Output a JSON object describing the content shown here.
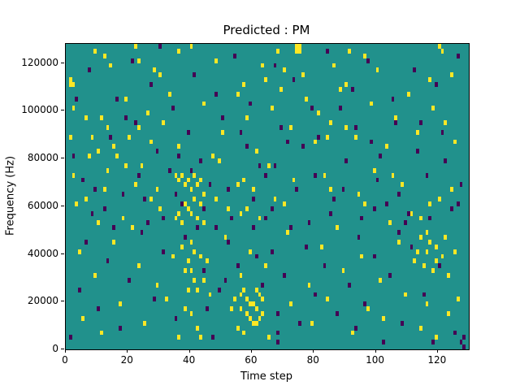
{
  "chart_data": {
    "type": "heatmap",
    "title": "Predicted : PM",
    "xlabel": "Time step",
    "ylabel": "Frequency (Hz)",
    "x_range": [
      0,
      130
    ],
    "y_range": [
      0,
      128000
    ],
    "x_ticks": [
      0,
      20,
      40,
      60,
      80,
      100,
      120
    ],
    "y_ticks": [
      0,
      20000,
      40000,
      60000,
      80000,
      100000,
      120000
    ],
    "grid": {
      "cols": 130,
      "rows": 64,
      "freq_per_row": 2000
    },
    "legend": "none",
    "colors": {
      "background": "#21918c",
      "high": "#fde725",
      "low": "#440154",
      "figure_bg": "#ffffff",
      "axis": "#000000"
    },
    "cells_high": [
      [
        1,
        55
      ],
      [
        2,
        55
      ],
      [
        1,
        56
      ],
      [
        9,
        62
      ],
      [
        14,
        59
      ],
      [
        22,
        63
      ],
      [
        23,
        60
      ],
      [
        30,
        57
      ],
      [
        36,
        62
      ],
      [
        40,
        63
      ],
      [
        48,
        60
      ],
      [
        57,
        55
      ],
      [
        63,
        59
      ],
      [
        64,
        56
      ],
      [
        68,
        62
      ],
      [
        70,
        58
      ],
      [
        74,
        63
      ],
      [
        75,
        62
      ],
      [
        76,
        57
      ],
      [
        86,
        59
      ],
      [
        90,
        55
      ],
      [
        91,
        62
      ],
      [
        96,
        61
      ],
      [
        100,
        58
      ],
      [
        117,
        56
      ],
      [
        120,
        63
      ],
      [
        121,
        62
      ],
      [
        124,
        57
      ],
      [
        12,
        61
      ],
      [
        28,
        58
      ],
      [
        2,
        50
      ],
      [
        6,
        48
      ],
      [
        10,
        41
      ],
      [
        13,
        46
      ],
      [
        19,
        52
      ],
      [
        20,
        44
      ],
      [
        26,
        49
      ],
      [
        31,
        47
      ],
      [
        36,
        42
      ],
      [
        44,
        51
      ],
      [
        50,
        45
      ],
      [
        55,
        53
      ],
      [
        58,
        48
      ],
      [
        61,
        41
      ],
      [
        66,
        50
      ],
      [
        72,
        46
      ],
      [
        77,
        52
      ],
      [
        80,
        43
      ],
      [
        81,
        49
      ],
      [
        85,
        47
      ],
      [
        88,
        54
      ],
      [
        93,
        44
      ],
      [
        98,
        51
      ],
      [
        103,
        42
      ],
      [
        106,
        48
      ],
      [
        110,
        53
      ],
      [
        113,
        45
      ],
      [
        118,
        50
      ],
      [
        122,
        47
      ],
      [
        125,
        43
      ],
      [
        33,
        53
      ],
      [
        47,
        40
      ],
      [
        69,
        54
      ],
      [
        8,
        44
      ],
      [
        16,
        40
      ],
      [
        35,
        36
      ],
      [
        36,
        35
      ],
      [
        37,
        36
      ],
      [
        38,
        34
      ],
      [
        38,
        30
      ],
      [
        39,
        35
      ],
      [
        39,
        29
      ],
      [
        40,
        33
      ],
      [
        40,
        28
      ],
      [
        41,
        31
      ],
      [
        41,
        36
      ],
      [
        42,
        27
      ],
      [
        42,
        34
      ],
      [
        43,
        30
      ],
      [
        44,
        26
      ],
      [
        36,
        28
      ],
      [
        37,
        26
      ],
      [
        43,
        35
      ],
      [
        44,
        32
      ],
      [
        35,
        27
      ],
      [
        3,
        30
      ],
      [
        12,
        33
      ],
      [
        18,
        27
      ],
      [
        24,
        38
      ],
      [
        27,
        31
      ],
      [
        52,
        29
      ],
      [
        55,
        34
      ],
      [
        56,
        28
      ],
      [
        57,
        35
      ],
      [
        58,
        29
      ],
      [
        60,
        33
      ],
      [
        62,
        27
      ],
      [
        65,
        38
      ],
      [
        70,
        30
      ],
      [
        83,
        36
      ],
      [
        87,
        25
      ],
      [
        94,
        32
      ],
      [
        99,
        37
      ],
      [
        104,
        26
      ],
      [
        108,
        34
      ],
      [
        111,
        28
      ],
      [
        120,
        31
      ],
      [
        13,
        37
      ],
      [
        21,
        25
      ],
      [
        49,
        39
      ],
      [
        4,
        20
      ],
      [
        9,
        15
      ],
      [
        15,
        22
      ],
      [
        23,
        17
      ],
      [
        29,
        13
      ],
      [
        34,
        19
      ],
      [
        37,
        21
      ],
      [
        38,
        16
      ],
      [
        39,
        12
      ],
      [
        40,
        22
      ],
      [
        41,
        14
      ],
      [
        45,
        18
      ],
      [
        51,
        23
      ],
      [
        56,
        15
      ],
      [
        59,
        20
      ],
      [
        61,
        12
      ],
      [
        64,
        17
      ],
      [
        71,
        24
      ],
      [
        78,
        13
      ],
      [
        82,
        21
      ],
      [
        89,
        16
      ],
      [
        95,
        19
      ],
      [
        101,
        14
      ],
      [
        107,
        22
      ],
      [
        112,
        18
      ],
      [
        114,
        23
      ],
      [
        115,
        17
      ],
      [
        116,
        20
      ],
      [
        117,
        22
      ],
      [
        118,
        16
      ],
      [
        119,
        21
      ],
      [
        121,
        19
      ],
      [
        122,
        23
      ],
      [
        123,
        15
      ],
      [
        125,
        20
      ],
      [
        113,
        20
      ],
      [
        116,
        24
      ],
      [
        119,
        18
      ],
      [
        5,
        6
      ],
      [
        11,
        3
      ],
      [
        17,
        9
      ],
      [
        25,
        5
      ],
      [
        32,
        10
      ],
      [
        36,
        2
      ],
      [
        40,
        7
      ],
      [
        42,
        4
      ],
      [
        46,
        11
      ],
      [
        53,
        8
      ],
      [
        57,
        3
      ],
      [
        58,
        10
      ],
      [
        59,
        6
      ],
      [
        60,
        9
      ],
      [
        61,
        5
      ],
      [
        62,
        11
      ],
      [
        63,
        7
      ],
      [
        65,
        2
      ],
      [
        72,
        9
      ],
      [
        79,
        5
      ],
      [
        84,
        10
      ],
      [
        92,
        3
      ],
      [
        97,
        8
      ],
      [
        102,
        6
      ],
      [
        109,
        11
      ],
      [
        114,
        4
      ],
      [
        116,
        9
      ],
      [
        119,
        2
      ],
      [
        123,
        7
      ],
      [
        126,
        10
      ],
      [
        55,
        4
      ],
      [
        56,
        8
      ],
      [
        54,
        10
      ],
      [
        43,
        2
      ],
      [
        38,
        8
      ],
      [
        39,
        18
      ],
      [
        40,
        16
      ],
      [
        41,
        20
      ],
      [
        42,
        12
      ],
      [
        43,
        19
      ],
      [
        44,
        14
      ],
      [
        58,
        7
      ],
      [
        59,
        9
      ],
      [
        60,
        5
      ],
      [
        61,
        8
      ],
      [
        62,
        6
      ],
      [
        63,
        10
      ],
      [
        57,
        12
      ],
      [
        56,
        11
      ],
      [
        75,
        63
      ],
      [
        74,
        62
      ],
      [
        90,
        46
      ],
      [
        84,
        44
      ],
      [
        29,
        33
      ],
      [
        30,
        29
      ],
      [
        22,
        34
      ],
      [
        48,
        31
      ],
      [
        67,
        31
      ],
      [
        73,
        35
      ],
      [
        85,
        33
      ],
      [
        96,
        30
      ],
      [
        105,
        36
      ],
      [
        114,
        27
      ],
      [
        117,
        30
      ],
      [
        124,
        33
      ],
      [
        6,
        31
      ],
      [
        10,
        26
      ],
      [
        1,
        44
      ],
      [
        2,
        36
      ],
      [
        7,
        40
      ],
      [
        11,
        48
      ],
      [
        15,
        42
      ],
      [
        19,
        38
      ],
      [
        23,
        46
      ],
      [
        27,
        43
      ]
    ],
    "cells_low": [
      [
        7,
        58
      ],
      [
        16,
        52
      ],
      [
        21,
        60
      ],
      [
        27,
        55
      ],
      [
        34,
        50
      ],
      [
        41,
        57
      ],
      [
        48,
        53
      ],
      [
        54,
        61
      ],
      [
        59,
        51
      ],
      [
        67,
        59
      ],
      [
        73,
        56
      ],
      [
        79,
        50
      ],
      [
        84,
        62
      ],
      [
        92,
        54
      ],
      [
        97,
        60
      ],
      [
        105,
        52
      ],
      [
        112,
        58
      ],
      [
        119,
        55
      ],
      [
        126,
        61
      ],
      [
        3,
        52
      ],
      [
        30,
        63
      ],
      [
        88,
        50
      ],
      [
        2,
        40
      ],
      [
        5,
        35
      ],
      [
        8,
        28
      ],
      [
        14,
        44
      ],
      [
        18,
        32
      ],
      [
        22,
        47
      ],
      [
        26,
        26
      ],
      [
        29,
        41
      ],
      [
        33,
        37
      ],
      [
        37,
        30
      ],
      [
        39,
        45
      ],
      [
        42,
        25
      ],
      [
        46,
        34
      ],
      [
        50,
        48
      ],
      [
        53,
        27
      ],
      [
        58,
        42
      ],
      [
        62,
        38
      ],
      [
        66,
        29
      ],
      [
        69,
        46
      ],
      [
        74,
        33
      ],
      [
        78,
        26
      ],
      [
        81,
        44
      ],
      [
        86,
        31
      ],
      [
        90,
        39
      ],
      [
        95,
        27
      ],
      [
        98,
        43
      ],
      [
        100,
        35
      ],
      [
        103,
        30
      ],
      [
        106,
        47
      ],
      [
        110,
        28
      ],
      [
        113,
        41
      ],
      [
        116,
        36
      ],
      [
        121,
        45
      ],
      [
        124,
        29
      ],
      [
        127,
        34
      ],
      [
        43,
        39
      ],
      [
        35,
        32
      ],
      [
        60,
        25
      ],
      [
        64,
        36
      ],
      [
        71,
        43
      ],
      [
        1,
        2
      ],
      [
        4,
        12
      ],
      [
        6,
        22
      ],
      [
        10,
        8
      ],
      [
        13,
        18
      ],
      [
        17,
        4
      ],
      [
        20,
        14
      ],
      [
        24,
        24
      ],
      [
        28,
        10
      ],
      [
        31,
        20
      ],
      [
        35,
        6
      ],
      [
        38,
        23
      ],
      [
        44,
        16
      ],
      [
        47,
        2
      ],
      [
        49,
        12
      ],
      [
        52,
        22
      ],
      [
        55,
        17
      ],
      [
        61,
        19
      ],
      [
        63,
        13
      ],
      [
        68,
        3
      ],
      [
        68,
        7
      ],
      [
        68,
        1
      ],
      [
        70,
        15
      ],
      [
        75,
        5
      ],
      [
        77,
        21
      ],
      [
        80,
        11
      ],
      [
        83,
        17
      ],
      [
        87,
        7
      ],
      [
        91,
        13
      ],
      [
        94,
        23
      ],
      [
        96,
        9
      ],
      [
        99,
        19
      ],
      [
        102,
        1
      ],
      [
        104,
        15
      ],
      [
        108,
        5
      ],
      [
        111,
        21
      ],
      [
        115,
        11
      ],
      [
        118,
        1
      ],
      [
        120,
        17
      ],
      [
        125,
        3
      ],
      [
        127,
        1
      ],
      [
        128,
        0
      ],
      [
        128,
        2
      ],
      [
        45,
        8
      ],
      [
        51,
        14
      ],
      [
        66,
        20
      ],
      [
        93,
        4
      ],
      [
        107,
        24
      ],
      [
        9,
        33
      ],
      [
        12,
        29
      ],
      [
        15,
        25
      ],
      [
        19,
        48
      ],
      [
        23,
        36
      ],
      [
        25,
        31
      ],
      [
        31,
        27
      ],
      [
        36,
        40
      ],
      [
        40,
        37
      ],
      [
        44,
        29
      ],
      [
        48,
        25
      ],
      [
        52,
        33
      ],
      [
        56,
        45
      ],
      [
        60,
        31
      ],
      [
        64,
        27
      ],
      [
        67,
        38
      ],
      [
        72,
        25
      ],
      [
        76,
        42
      ],
      [
        80,
        36
      ],
      [
        85,
        28
      ],
      [
        89,
        33
      ],
      [
        93,
        46
      ],
      [
        99,
        29
      ],
      [
        101,
        40
      ],
      [
        107,
        32
      ],
      [
        109,
        26
      ],
      [
        114,
        47
      ],
      [
        117,
        27
      ],
      [
        122,
        39
      ],
      [
        126,
        30
      ]
    ]
  }
}
